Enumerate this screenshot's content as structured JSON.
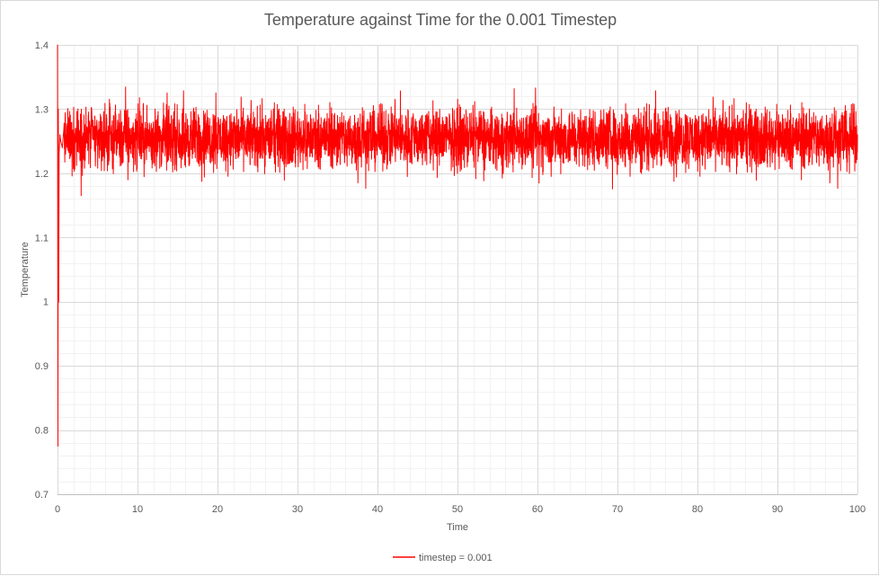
{
  "chart_data": {
    "type": "line",
    "title": "Temperature against Time for the 0.001 Timestep",
    "xlabel": "Time",
    "ylabel": "Temperature",
    "xlim": [
      0,
      100
    ],
    "ylim": [
      0.7,
      1.4
    ],
    "x_ticks": [
      "0",
      "10",
      "20",
      "30",
      "40",
      "50",
      "60",
      "70",
      "80",
      "90",
      "100"
    ],
    "y_ticks": [
      "0.7",
      "0.8",
      "0.9",
      "1",
      "1.1",
      "1.2",
      "1.3",
      "1.4"
    ],
    "grid": true,
    "minor_grid": true,
    "legend_position": "bottom",
    "series": [
      {
        "name": "timestep = 0.001",
        "color": "#ff0000",
        "x": [
          0,
          0.05,
          0.1,
          0.15,
          0.2,
          0.3,
          0.4,
          0.6,
          0.8,
          1,
          2,
          3,
          4,
          5,
          6,
          7,
          8,
          8.8,
          9,
          10,
          11,
          12,
          13,
          13.7,
          14,
          15,
          16,
          17,
          18,
          19,
          19.8,
          20,
          21,
          22,
          23,
          24,
          25,
          26,
          27,
          28,
          29,
          30,
          31,
          32,
          33,
          34,
          35,
          36,
          37,
          38,
          39,
          40,
          41,
          42.2,
          43,
          44,
          45,
          46,
          47,
          48,
          49,
          50,
          51,
          52,
          53,
          54,
          55,
          56,
          57,
          58,
          59,
          60.2,
          61,
          62,
          63,
          64,
          65,
          66,
          67,
          68,
          69,
          70,
          71,
          72,
          73,
          74,
          75,
          76,
          77,
          78,
          79,
          80,
          81,
          82,
          83,
          84,
          85,
          86,
          87,
          88,
          89,
          90,
          91,
          92,
          93,
          94,
          95,
          96,
          97,
          98,
          99,
          100
        ],
        "y": [
          1.4,
          0.775,
          1.3,
          1.0,
          1.23,
          1.26,
          1.25,
          1.24,
          1.27,
          1.23,
          1.26,
          1.21,
          1.28,
          1.25,
          1.24,
          1.29,
          1.22,
          1.19,
          1.27,
          1.26,
          1.24,
          1.28,
          1.22,
          1.325,
          1.24,
          1.27,
          1.21,
          1.29,
          1.25,
          1.23,
          1.325,
          1.26,
          1.22,
          1.28,
          1.24,
          1.27,
          1.21,
          1.26,
          1.3,
          1.23,
          1.25,
          1.28,
          1.22,
          1.27,
          1.25,
          1.23,
          1.29,
          1.24,
          1.26,
          1.21,
          1.28,
          1.25,
          1.23,
          1.315,
          1.24,
          1.27,
          1.22,
          1.29,
          1.25,
          1.24,
          1.28,
          1.2,
          1.26,
          1.24,
          1.29,
          1.22,
          1.27,
          1.25,
          1.23,
          1.28,
          1.24,
          1.185,
          1.27,
          1.25,
          1.3,
          1.22,
          1.26,
          1.24,
          1.28,
          1.23,
          1.27,
          1.25,
          1.21,
          1.29,
          1.2,
          1.26,
          1.24,
          1.3,
          1.22,
          1.27,
          1.25,
          1.23,
          1.28,
          1.24,
          1.26,
          1.21,
          1.29,
          1.25,
          1.23,
          1.27,
          1.24,
          1.28,
          1.22,
          1.26,
          1.19,
          1.3,
          1.24,
          1.27,
          1.21,
          1.29,
          1.2,
          1.26
        ]
      }
    ]
  }
}
